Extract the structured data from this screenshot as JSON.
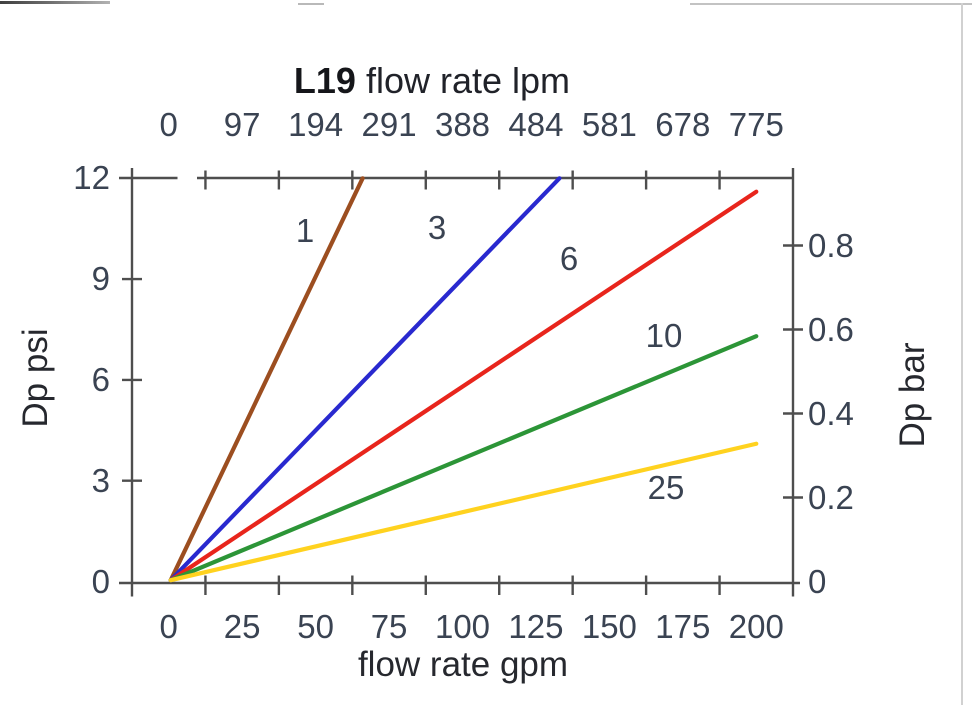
{
  "page": {
    "title_bold": "L19",
    "title_rest": "flow rate lpm"
  },
  "chart_data": {
    "type": "line",
    "title": "L19 flow rate lpm",
    "top_axis": {
      "label": "flow rate lpm",
      "ticks": [
        "0",
        "97",
        "194",
        "291",
        "388",
        "484",
        "581",
        "678",
        "775"
      ],
      "range_lpm": [
        0,
        775
      ]
    },
    "bottom_axis": {
      "label": "flow rate gpm",
      "ticks": [
        "0",
        "25",
        "50",
        "75",
        "100",
        "125",
        "150",
        "175",
        "200"
      ],
      "range_gpm": [
        0,
        200
      ]
    },
    "left_axis": {
      "label": "Dp psi",
      "ticks": [
        "0",
        "3",
        "6",
        "9",
        "12"
      ],
      "range_psi": [
        0,
        12
      ]
    },
    "right_axis": {
      "label": "Dp bar",
      "ticks": [
        "0",
        "0.2",
        "0.4",
        "0.6",
        "0.8"
      ],
      "range_bar": [
        0,
        0.8
      ]
    },
    "grid": false,
    "legend": "labels on lines",
    "axis_color": "#4e4e4e",
    "text_color": "#3a4352",
    "series": [
      {
        "label": "1",
        "color": "#9c4e20",
        "points_gpm_psi": [
          [
            0,
            0
          ],
          [
            66,
            12
          ]
        ]
      },
      {
        "label": "3",
        "color": "#2929cf",
        "points_gpm_psi": [
          [
            0,
            0
          ],
          [
            133,
            12
          ]
        ]
      },
      {
        "label": "6",
        "color": "#e8251c",
        "points_gpm_psi": [
          [
            0,
            0
          ],
          [
            200,
            11.6
          ]
        ]
      },
      {
        "label": "10",
        "color": "#2c9537",
        "points_gpm_psi": [
          [
            0,
            0
          ],
          [
            200,
            7.3
          ]
        ]
      },
      {
        "label": "25",
        "color": "#ffd21f",
        "points_gpm_psi": [
          [
            0,
            0
          ],
          [
            200,
            4.1
          ]
        ]
      }
    ]
  }
}
